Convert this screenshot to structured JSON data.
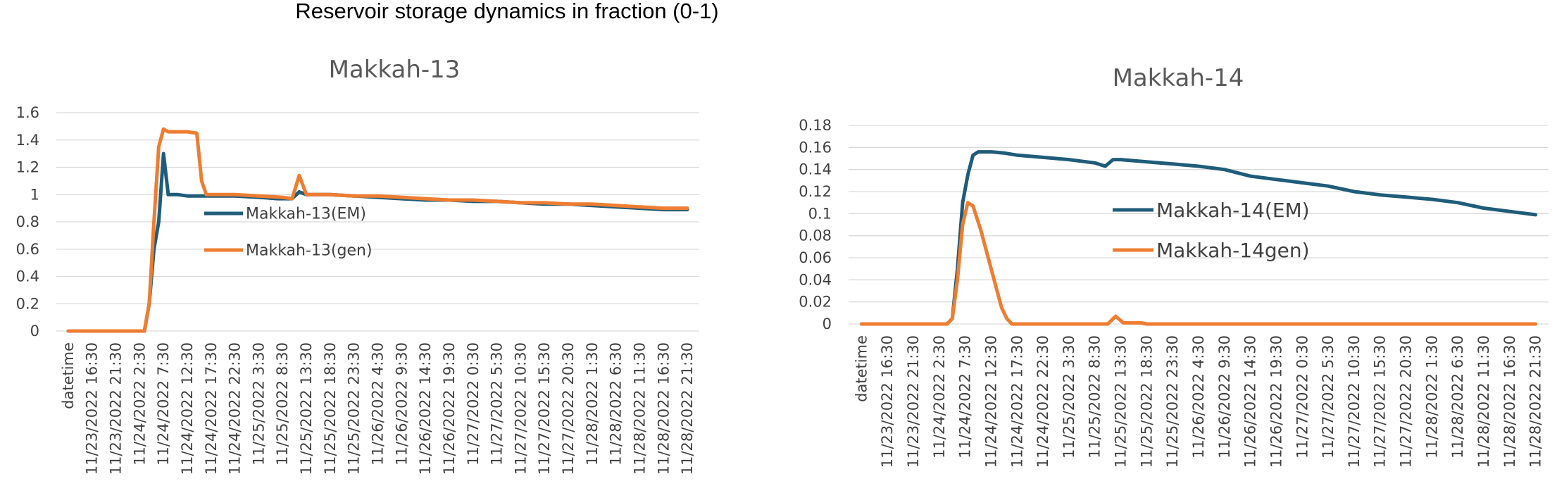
{
  "title": "Reservoir storage dynamics in fraction (0-1)",
  "chart_data": [
    {
      "type": "line",
      "title": "Makkah-13",
      "xlabel": "",
      "ylabel": "",
      "ylim": [
        0,
        1.6
      ],
      "yticks": [
        "0",
        "0.2",
        "0.4",
        "0.6",
        "0.8",
        "1",
        "1.2",
        "1.4",
        "1.6"
      ],
      "grid": true,
      "legend_position": "center",
      "categories": [
        "datetime",
        "11/23/2022 16:30",
        "11/23/2022 21:30",
        "11/24/2022 2:30",
        "11/24/2022 7:30",
        "11/24/2022 12:30",
        "11/24/2022 17:30",
        "11/24/2022 22:30",
        "11/25/2022 3:30",
        "11/25/2022 8:30",
        "11/25/2022 13:30",
        "11/25/2022 18:30",
        "11/25/2022 23:30",
        "11/26/2022 4:30",
        "11/26/2022 9:30",
        "11/26/2022 14:30",
        "11/26/2022 19:30",
        "11/27/2022 0:30",
        "11/27/2022 5:30",
        "11/27/2022 10:30",
        "11/27/2022 15:30",
        "11/27/2022 20:30",
        "11/28/2022 1:30",
        "11/28/2022 6:30",
        "11/28/2022 11:30",
        "11/28/2022 16:30",
        "11/28/2022 21:30"
      ],
      "series": [
        {
          "name": "Makkah-13(EM)",
          "color": "#1f5c7a",
          "points": [
            [
              0,
              0
            ],
            [
              1,
              0
            ],
            [
              2,
              0
            ],
            [
              3,
              0
            ],
            [
              3.2,
              0
            ],
            [
              3.4,
              0.2
            ],
            [
              3.6,
              0.6
            ],
            [
              3.8,
              0.8
            ],
            [
              4.0,
              1.3
            ],
            [
              4.2,
              1.0
            ],
            [
              4.6,
              1.0
            ],
            [
              5,
              0.99
            ],
            [
              5.6,
              0.99
            ],
            [
              6,
              0.99
            ],
            [
              7,
              0.99
            ],
            [
              8,
              0.98
            ],
            [
              8.8,
              0.97
            ],
            [
              9.4,
              0.97
            ],
            [
              9.7,
              1.02
            ],
            [
              10,
              1.0
            ],
            [
              11,
              1.0
            ],
            [
              12,
              0.99
            ],
            [
              13,
              0.98
            ],
            [
              14,
              0.97
            ],
            [
              15,
              0.96
            ],
            [
              16,
              0.96
            ],
            [
              17,
              0.95
            ],
            [
              18,
              0.95
            ],
            [
              19,
              0.94
            ],
            [
              20,
              0.93
            ],
            [
              21,
              0.93
            ],
            [
              22,
              0.92
            ],
            [
              23,
              0.91
            ],
            [
              24,
              0.9
            ],
            [
              25,
              0.89
            ],
            [
              26,
              0.89
            ]
          ]
        },
        {
          "name": "Makkah-13(gen)",
          "color": "#ed7d31",
          "points": [
            [
              0,
              0
            ],
            [
              1,
              0
            ],
            [
              2,
              0
            ],
            [
              3,
              0
            ],
            [
              3.2,
              0
            ],
            [
              3.4,
              0.2
            ],
            [
              3.6,
              0.8
            ],
            [
              3.8,
              1.35
            ],
            [
              4.0,
              1.48
            ],
            [
              4.2,
              1.46
            ],
            [
              4.6,
              1.46
            ],
            [
              5,
              1.46
            ],
            [
              5.4,
              1.45
            ],
            [
              5.6,
              1.1
            ],
            [
              5.8,
              1.0
            ],
            [
              6,
              1.0
            ],
            [
              7,
              1.0
            ],
            [
              8,
              0.99
            ],
            [
              9,
              0.98
            ],
            [
              9.4,
              0.97
            ],
            [
              9.7,
              1.14
            ],
            [
              10,
              1.0
            ],
            [
              11,
              1.0
            ],
            [
              12,
              0.99
            ],
            [
              13,
              0.99
            ],
            [
              14,
              0.98
            ],
            [
              15,
              0.97
            ],
            [
              16,
              0.96
            ],
            [
              17,
              0.96
            ],
            [
              18,
              0.95
            ],
            [
              19,
              0.94
            ],
            [
              20,
              0.94
            ],
            [
              21,
              0.93
            ],
            [
              22,
              0.93
            ],
            [
              23,
              0.92
            ],
            [
              24,
              0.91
            ],
            [
              25,
              0.9
            ],
            [
              26,
              0.9
            ]
          ]
        }
      ]
    },
    {
      "type": "line",
      "title": "Makkah-14",
      "xlabel": "",
      "ylabel": "",
      "ylim": [
        0,
        0.18
      ],
      "yticks": [
        "0",
        "0.02",
        "0.04",
        "0.06",
        "0.08",
        "0.1",
        "0.12",
        "0.14",
        "0.16",
        "0.18"
      ],
      "grid": true,
      "legend_position": "center",
      "categories": [
        "datetime",
        "11/23/2022 16:30",
        "11/23/2022 21:30",
        "11/24/2022 2:30",
        "11/24/2022 7:30",
        "11/24/2022 12:30",
        "11/24/2022 17:30",
        "11/24/2022 22:30",
        "11/25/2022 3:30",
        "11/25/2022 8:30",
        "11/25/2022 13:30",
        "11/25/2022 18:30",
        "11/25/2022 23:30",
        "11/26/2022 4:30",
        "11/26/2022 9:30",
        "11/26/2022 14:30",
        "11/26/2022 19:30",
        "11/27/2022 0:30",
        "11/27/2022 5:30",
        "11/27/2022 10:30",
        "11/27/2022 15:30",
        "11/27/2022 20:30",
        "11/28/2022 1:30",
        "11/28/2022 6:30",
        "11/28/2022 11:30",
        "11/28/2022 16:30",
        "11/28/2022 21:30"
      ],
      "series": [
        {
          "name": "Makkah-14(EM)",
          "color": "#1f5c7a",
          "points": [
            [
              0,
              0
            ],
            [
              1,
              0
            ],
            [
              2,
              0
            ],
            [
              3,
              0
            ],
            [
              3.3,
              0
            ],
            [
              3.5,
              0.005
            ],
            [
              3.7,
              0.05
            ],
            [
              3.9,
              0.11
            ],
            [
              4.1,
              0.135
            ],
            [
              4.3,
              0.153
            ],
            [
              4.5,
              0.156
            ],
            [
              5,
              0.156
            ],
            [
              5.5,
              0.155
            ],
            [
              6,
              0.153
            ],
            [
              7,
              0.151
            ],
            [
              8,
              0.149
            ],
            [
              9,
              0.146
            ],
            [
              9.4,
              0.143
            ],
            [
              9.7,
              0.149
            ],
            [
              10,
              0.149
            ],
            [
              11,
              0.147
            ],
            [
              12,
              0.145
            ],
            [
              13,
              0.143
            ],
            [
              14,
              0.14
            ],
            [
              15,
              0.134
            ],
            [
              16,
              0.131
            ],
            [
              17,
              0.128
            ],
            [
              18,
              0.125
            ],
            [
              19,
              0.12
            ],
            [
              20,
              0.117
            ],
            [
              21,
              0.115
            ],
            [
              22,
              0.113
            ],
            [
              23,
              0.11
            ],
            [
              24,
              0.105
            ],
            [
              25,
              0.102
            ],
            [
              26,
              0.099
            ]
          ]
        },
        {
          "name": "Makkah-14gen)",
          "color": "#ed7d31",
          "points": [
            [
              0,
              0
            ],
            [
              1,
              0
            ],
            [
              2,
              0
            ],
            [
              3,
              0
            ],
            [
              3.3,
              0
            ],
            [
              3.5,
              0.005
            ],
            [
              3.7,
              0.04
            ],
            [
              3.9,
              0.09
            ],
            [
              4.1,
              0.11
            ],
            [
              4.3,
              0.107
            ],
            [
              4.6,
              0.085
            ],
            [
              5,
              0.05
            ],
            [
              5.4,
              0.015
            ],
            [
              5.6,
              0.005
            ],
            [
              5.8,
              0
            ],
            [
              6,
              0
            ],
            [
              7,
              0
            ],
            [
              8,
              0
            ],
            [
              9,
              0
            ],
            [
              9.5,
              0
            ],
            [
              9.8,
              0.007
            ],
            [
              10.1,
              0.001
            ],
            [
              10.8,
              0.001
            ],
            [
              11,
              0
            ],
            [
              12,
              0
            ],
            [
              13,
              0
            ],
            [
              14,
              0
            ],
            [
              15,
              0
            ],
            [
              16,
              0
            ],
            [
              17,
              0
            ],
            [
              18,
              0
            ],
            [
              19,
              0
            ],
            [
              20,
              0
            ],
            [
              21,
              0
            ],
            [
              22,
              0
            ],
            [
              23,
              0
            ],
            [
              24,
              0
            ],
            [
              25,
              0
            ],
            [
              26,
              0
            ]
          ]
        }
      ]
    }
  ]
}
